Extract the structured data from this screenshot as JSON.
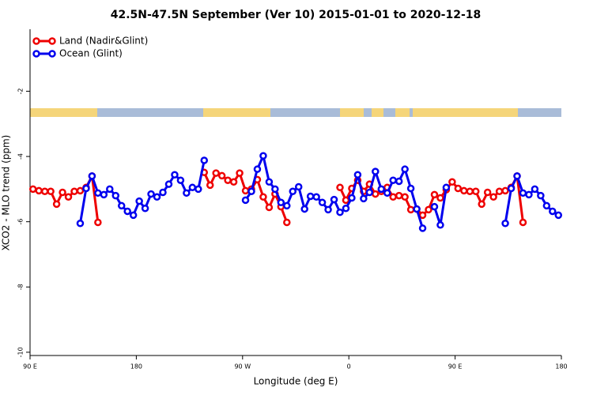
{
  "chart_data": {
    "type": "line",
    "title": "42.5N-47.5N September (Ver 10)   2015-01-01 to 2020-12-18",
    "xlabel": "Longitude (deg E)",
    "ylabel": "XCO2 - MLO trend (ppm)",
    "x": [
      92.5,
      97.5,
      102.5,
      107.5,
      112.5,
      117.5,
      122.5,
      127.5,
      132.5,
      137.5,
      142.5,
      147.5,
      152.5,
      157.5,
      162.5,
      167.5,
      172.5,
      177.5,
      182.5,
      187.5,
      192.5,
      197.5,
      202.5,
      207.5,
      212.5,
      217.5,
      222.5,
      227.5,
      232.5,
      237.5,
      242.5,
      247.5,
      252.5,
      257.5,
      262.5,
      267.5,
      272.5,
      277.5,
      282.5,
      287.5,
      292.5,
      297.5,
      302.5,
      307.5,
      312.5,
      317.5,
      322.5,
      327.5,
      332.5,
      337.5,
      342.5,
      347.5,
      352.5,
      357.5,
      362.5,
      367.5,
      372.5,
      377.5,
      382.5,
      387.5,
      392.5,
      397.5,
      402.5,
      407.5,
      412.5,
      417.5,
      422.5,
      427.5,
      432.5,
      437.5,
      442.5,
      447.5,
      452.5,
      457.5,
      462.5,
      467.5,
      472.5,
      477.5,
      482.5,
      487.5,
      492.5,
      497.5,
      502.5,
      507.5,
      512.5,
      517.5,
      522.5,
      527.5,
      532.5,
      537.5
    ],
    "series": [
      {
        "name": "Land (Nadir&Glint)",
        "color": "#ee0000",
        "values": [
          -5.0,
          -5.05,
          -5.07,
          -5.07,
          -5.46,
          -5.1,
          -5.24,
          -5.07,
          -5.05,
          -4.95,
          -4.6,
          -6.02,
          null,
          null,
          null,
          null,
          null,
          null,
          null,
          null,
          null,
          null,
          null,
          null,
          null,
          null,
          null,
          null,
          null,
          -4.49,
          -4.88,
          -4.51,
          -4.59,
          -4.73,
          -4.78,
          -4.51,
          -5.05,
          -5.0,
          -4.71,
          -5.24,
          -5.56,
          -5.15,
          -5.54,
          -6.02,
          null,
          null,
          null,
          null,
          null,
          null,
          null,
          null,
          -4.95,
          -5.34,
          -4.98,
          -4.73,
          -5.07,
          -4.85,
          -5.15,
          -5.07,
          -4.95,
          -5.24,
          -5.2,
          -5.24,
          -5.63,
          -5.61,
          -5.8,
          -5.63,
          -5.17,
          -5.27,
          -5.02,
          -4.78,
          -4.98,
          -5.05,
          -5.07,
          -5.07,
          -5.46,
          -5.1,
          -5.24,
          -5.07,
          -5.05,
          -4.95,
          -4.6,
          -6.02,
          null,
          null,
          null,
          null,
          null,
          null
        ]
      },
      {
        "name": "Ocean (Glint)",
        "color": "#0000ee",
        "values": [
          null,
          null,
          null,
          null,
          null,
          null,
          null,
          null,
          -6.05,
          -4.98,
          -4.6,
          -5.12,
          -5.17,
          -5.0,
          -5.2,
          -5.51,
          -5.68,
          -5.8,
          -5.37,
          -5.59,
          -5.15,
          -5.24,
          -5.1,
          -4.85,
          -4.56,
          -4.73,
          -5.12,
          -4.95,
          -5.0,
          -4.12,
          null,
          null,
          null,
          null,
          null,
          null,
          -5.34,
          -5.07,
          -4.39,
          -3.98,
          -4.78,
          -5.0,
          -5.41,
          -5.51,
          -5.07,
          -4.93,
          -5.61,
          -5.22,
          -5.24,
          -5.41,
          -5.63,
          -5.32,
          -5.71,
          -5.59,
          -5.27,
          -4.56,
          -5.29,
          -5.1,
          -4.46,
          -5.0,
          -5.12,
          -4.73,
          -4.76,
          -4.39,
          -4.98,
          -5.61,
          -6.2,
          null,
          -5.54,
          -6.1,
          -4.95,
          null,
          null,
          null,
          null,
          null,
          null,
          null,
          null,
          null,
          -6.05,
          -4.98,
          -4.6,
          -5.12,
          -5.17,
          -5.0,
          -5.2,
          -5.51,
          -5.68,
          -5.8
        ]
      }
    ],
    "xlim": [
      90,
      540
    ],
    "ylim": [
      -10.1,
      -0.1
    ],
    "xticks": [
      {
        "value": 90,
        "label": "90 E"
      },
      180,
      {
        "value": 270,
        "label": "90 W"
      },
      {
        "value": 360,
        "label": "0"
      },
      {
        "value": 450,
        "label": "90 E"
      },
      {
        "value": 540,
        "label": "180"
      }
    ],
    "yticks": [
      -2,
      -4,
      -6,
      -8,
      -10
    ],
    "legend": "upper left"
  }
}
